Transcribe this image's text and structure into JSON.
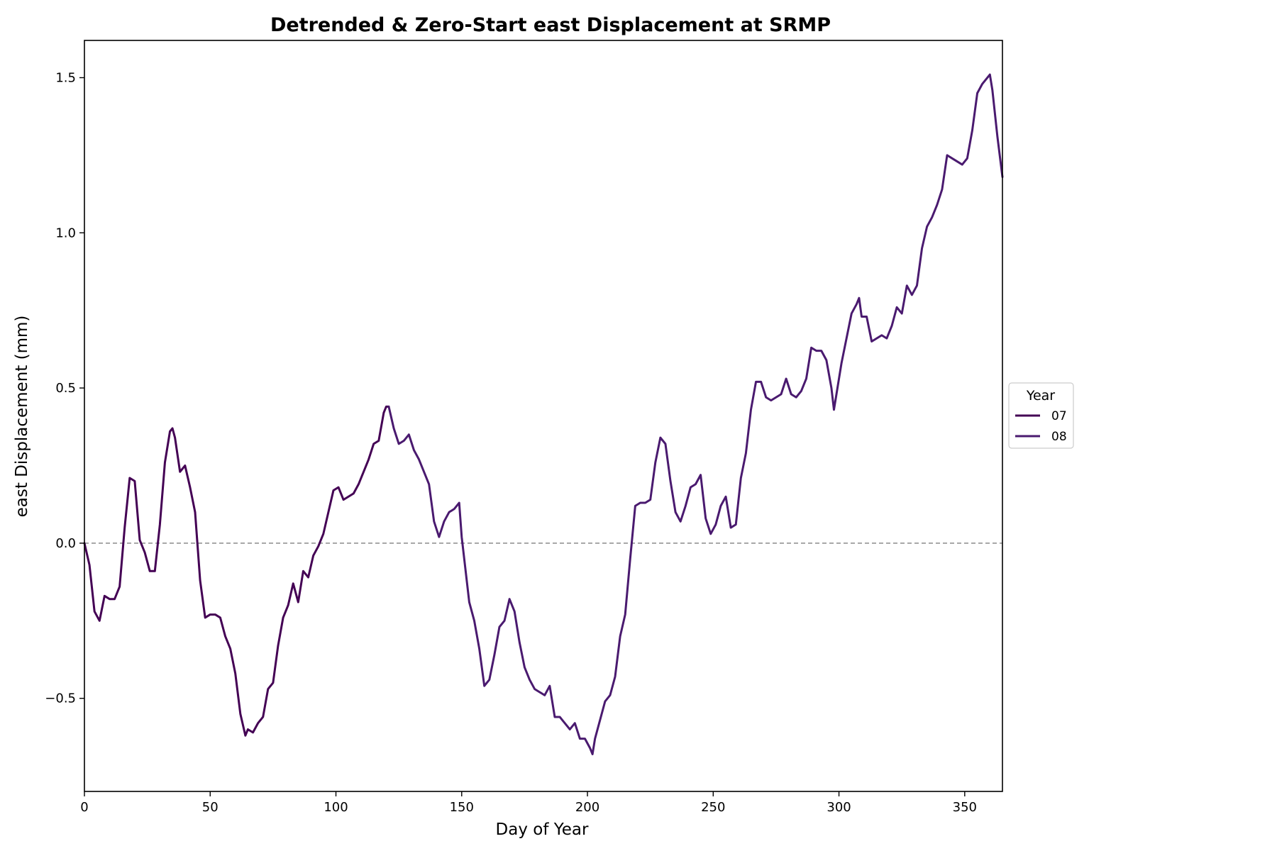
{
  "chart_data": {
    "type": "line",
    "title": "Detrended & Zero-Start east Displacement at SRMP",
    "xlabel": "Day of Year",
    "ylabel": "east Displacement (mm)",
    "xlim": [
      0,
      365
    ],
    "ylim": [
      -0.8,
      1.62
    ],
    "xticks": [
      0,
      50,
      100,
      150,
      200,
      250,
      300,
      350
    ],
    "yticks": [
      -0.5,
      0.0,
      0.5,
      1.0,
      1.5
    ],
    "xtick_labels": [
      "0",
      "50",
      "100",
      "150",
      "200",
      "250",
      "300",
      "350"
    ],
    "ytick_labels": [
      "−0.5",
      "0.0",
      "0.5",
      "1.0",
      "1.5"
    ],
    "grid": false,
    "reference_line": {
      "y": 0.0,
      "style": "dashed",
      "color": "#808080"
    },
    "legend": {
      "title": "Year",
      "placement": "right, outside plot",
      "entries": [
        "07",
        "08"
      ]
    },
    "series": [
      {
        "name": "07",
        "color": "#440154",
        "x": [
          0,
          2,
          4,
          6,
          8,
          10,
          12,
          14,
          16,
          18,
          20,
          22,
          24,
          26,
          28,
          30,
          32,
          34,
          35,
          36,
          38,
          40,
          42,
          44,
          46,
          48,
          50,
          52,
          54,
          56,
          58,
          60,
          62,
          64,
          65,
          67,
          69,
          71,
          73,
          75,
          77,
          79,
          81,
          83,
          85,
          87,
          89,
          91,
          93,
          95,
          97,
          99,
          101,
          103,
          105,
          107,
          109,
          111,
          113,
          115,
          117,
          119,
          120,
          121
        ],
        "y": [
          0.0,
          -0.07,
          -0.22,
          -0.25,
          -0.17,
          -0.18,
          -0.18,
          -0.14,
          0.05,
          0.21,
          0.2,
          0.01,
          -0.03,
          -0.09,
          -0.09,
          0.06,
          0.26,
          0.36,
          0.37,
          0.34,
          0.23,
          0.25,
          0.18,
          0.1,
          -0.12,
          -0.24,
          -0.23,
          -0.23,
          -0.24,
          -0.3,
          -0.34,
          -0.42,
          -0.55,
          -0.62,
          -0.6,
          -0.61,
          -0.58,
          -0.56,
          -0.47,
          -0.45,
          -0.33,
          -0.24,
          -0.2,
          -0.13,
          -0.19,
          -0.09,
          -0.11,
          -0.04,
          -0.01,
          0.03,
          0.1,
          0.17,
          0.18,
          0.14,
          0.15,
          0.16,
          0.19,
          0.23,
          0.27,
          0.32,
          0.33,
          0.42,
          0.44,
          0.44
        ]
      },
      {
        "name": "08",
        "color": "#4a1a6f",
        "x": [
          121,
          123,
          125,
          127,
          129,
          131,
          133,
          135,
          137,
          139,
          141,
          143,
          145,
          147,
          149,
          150,
          151,
          153,
          155,
          157,
          159,
          161,
          163,
          165,
          167,
          169,
          171,
          173,
          175,
          177,
          179,
          181,
          183,
          185,
          187,
          189,
          191,
          193,
          195,
          197,
          199,
          201,
          202,
          203,
          205,
          207,
          209,
          211,
          213,
          215,
          217,
          219,
          221,
          223,
          225,
          227,
          229,
          231,
          233,
          235,
          237,
          239,
          241,
          243,
          245,
          247,
          249,
          251,
          253,
          255,
          257,
          259,
          261,
          263,
          265,
          267,
          269,
          271,
          273,
          275,
          277,
          279,
          281,
          283,
          285,
          287,
          289,
          291,
          293,
          295,
          297,
          298,
          299,
          301,
          303,
          305,
          307,
          308,
          309,
          311,
          313,
          315,
          317,
          319,
          321,
          323,
          325,
          327,
          329,
          331,
          333,
          335,
          337,
          339,
          341,
          343,
          345,
          347,
          349,
          351,
          353,
          355,
          357,
          359,
          360,
          361,
          363,
          365
        ],
        "y": [
          0.44,
          0.37,
          0.32,
          0.33,
          0.35,
          0.3,
          0.27,
          0.23,
          0.19,
          0.07,
          0.02,
          0.07,
          0.1,
          0.11,
          0.13,
          0.02,
          -0.05,
          -0.19,
          -0.25,
          -0.34,
          -0.46,
          -0.44,
          -0.36,
          -0.27,
          -0.25,
          -0.18,
          -0.22,
          -0.32,
          -0.4,
          -0.44,
          -0.47,
          -0.48,
          -0.49,
          -0.46,
          -0.56,
          -0.56,
          -0.58,
          -0.6,
          -0.58,
          -0.63,
          -0.63,
          -0.66,
          -0.68,
          -0.63,
          -0.57,
          -0.51,
          -0.49,
          -0.43,
          -0.3,
          -0.23,
          -0.05,
          0.12,
          0.13,
          0.13,
          0.14,
          0.26,
          0.34,
          0.32,
          0.2,
          0.1,
          0.07,
          0.12,
          0.18,
          0.19,
          0.22,
          0.08,
          0.03,
          0.06,
          0.12,
          0.15,
          0.05,
          0.06,
          0.21,
          0.29,
          0.43,
          0.52,
          0.52,
          0.47,
          0.46,
          0.47,
          0.48,
          0.53,
          0.48,
          0.47,
          0.49,
          0.53,
          0.63,
          0.62,
          0.62,
          0.59,
          0.5,
          0.43,
          0.48,
          0.58,
          0.66,
          0.74,
          0.77,
          0.79,
          0.73,
          0.73,
          0.65,
          0.66,
          0.67,
          0.66,
          0.7,
          0.76,
          0.74,
          0.83,
          0.8,
          0.83,
          0.95,
          1.02,
          1.05,
          1.09,
          1.14,
          1.25,
          1.24,
          1.23,
          1.22,
          1.24,
          1.33,
          1.45,
          1.48,
          1.5,
          1.51,
          1.46,
          1.31,
          1.18
        ]
      }
    ]
  }
}
